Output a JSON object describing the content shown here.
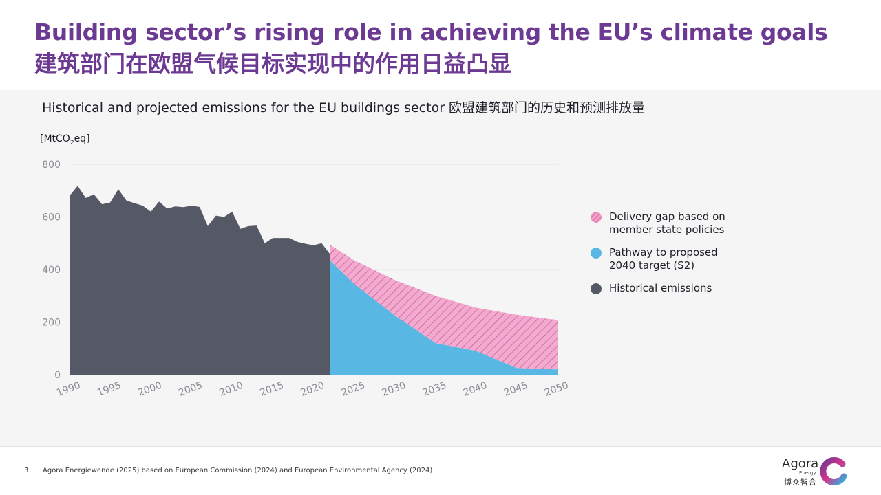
{
  "header": {
    "title_en": "Building sector’s rising role in achieving the EU’s climate goals",
    "title_zh": "建筑部门在欧盟气候目标实现中的作用日益凸显"
  },
  "colors": {
    "title": "#6c3a92",
    "historical": "#555865",
    "pathway": "#58b7e3",
    "gap": "#e681b5"
  },
  "chart_data": {
    "type": "area",
    "title": "Historical and projected emissions for the EU buildings sector 欧盟建筑部门的历史和预测排放量",
    "unit_prefix": "[MtCO",
    "unit_sub": "2",
    "unit_suffix": "eq]",
    "ylim": [
      0,
      800
    ],
    "xlim": [
      1990,
      2050
    ],
    "y_ticks": [
      0,
      200,
      400,
      600,
      800
    ],
    "x_ticks": [
      1990,
      1995,
      2000,
      2005,
      2010,
      2015,
      2020,
      2025,
      2030,
      2035,
      2040,
      2045,
      2050
    ],
    "grid": true,
    "legend_position": "right",
    "series": [
      {
        "name": "Historical emissions",
        "key": "historical",
        "x": [
          1990,
          1991,
          1992,
          1993,
          1994,
          1995,
          1996,
          1997,
          1998,
          1999,
          2000,
          2001,
          2002,
          2003,
          2004,
          2005,
          2006,
          2007,
          2008,
          2009,
          2010,
          2011,
          2012,
          2013,
          2014,
          2015,
          2016,
          2017,
          2018,
          2019,
          2020,
          2021,
          2022
        ],
        "values": [
          680,
          718,
          672,
          686,
          648,
          655,
          705,
          662,
          652,
          643,
          620,
          658,
          632,
          640,
          637,
          643,
          638,
          565,
          605,
          600,
          620,
          555,
          565,
          567,
          500,
          520,
          520,
          520,
          505,
          498,
          492,
          500,
          460
        ]
      },
      {
        "name": "Pathway to proposed 2040 target (S2)",
        "key": "pathway",
        "x": [
          2022,
          2025,
          2030,
          2035,
          2040,
          2045,
          2050
        ],
        "values": [
          435,
          345,
          225,
          120,
          90,
          25,
          20
        ]
      },
      {
        "name": "Delivery gap based on member state policies",
        "key": "gap",
        "x": [
          2022,
          2025,
          2030,
          2035,
          2040,
          2045,
          2050
        ],
        "values": [
          495,
          435,
          360,
          300,
          255,
          228,
          208
        ]
      }
    ],
    "legend": [
      {
        "key": "gap",
        "label": "Delivery gap based on member state policies"
      },
      {
        "key": "pathway",
        "label": "Pathway to proposed 2040 target (S2)"
      },
      {
        "key": "historical",
        "label": "Historical emissions"
      }
    ]
  },
  "footer": {
    "page_number": "3",
    "source": "Agora Energiewende (2025) based on European Commission (2024) and European Environmental Agency (2024)",
    "logo_name": "Agora",
    "logo_sub": "Energy",
    "logo_zh": "博众智合"
  }
}
